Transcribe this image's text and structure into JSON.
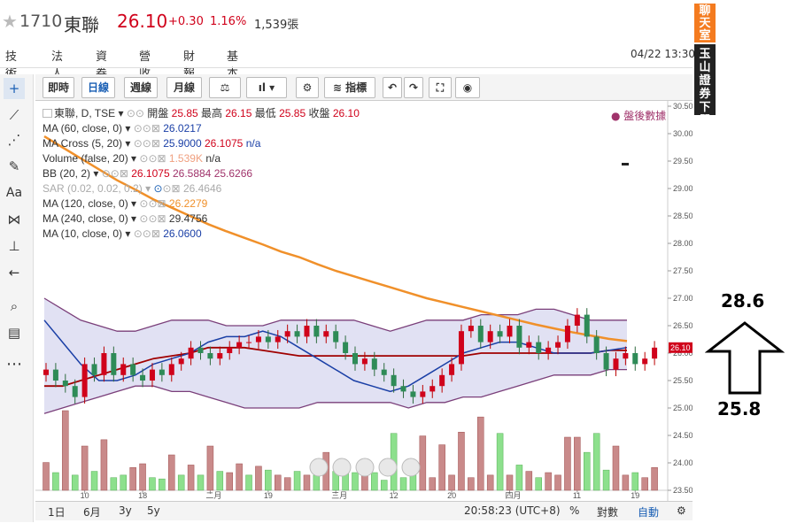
{
  "header": {
    "code": "1710",
    "name": "東聯",
    "price": "26.10",
    "change": "+0.30",
    "percent": "1.16%",
    "volume": "1,539張",
    "datetime": "04/22 13:30"
  },
  "tabs": [
    "技術",
    "法人",
    "資券",
    "營收",
    "財報",
    "基本"
  ],
  "toolbar": {
    "period_buttons": [
      "即時",
      "日線",
      "週線",
      "月線"
    ],
    "indicator_label": "指標"
  },
  "legend": {
    "main_label": "東聯, D, TSE",
    "open_label": "開盤",
    "open": "25.85",
    "high_label": "最高",
    "high": "26.15",
    "low_label": "最低",
    "low": "25.85",
    "close_label": "收盤",
    "close": "26.10",
    "ma60_label": "MA (60, close, 0)",
    "ma60": "26.0217",
    "macross_label": "MA Cross (5, 20)",
    "macross_1": "25.9000",
    "macross_2": "26.1075",
    "macross_3": "n/a",
    "volume_label": "Volume (false, 20)",
    "volume_1": "1.539K",
    "volume_2": "n/a",
    "bb_label": "BB (20, 2)",
    "bb_1": "26.1075",
    "bb_2": "26.5884",
    "bb_3": "25.6266",
    "sar_label": "SAR (0.02, 0.02, 0.2)",
    "sar": "26.4646",
    "ma120_label": "MA (120, close, 0)",
    "ma120": "26.2279",
    "ma240_label": "MA (240, close, 0)",
    "ma240": "29.4756",
    "ma10_label": "MA (10, close, 0)",
    "ma10": "26.0600",
    "after_hours": "盤後數據"
  },
  "bottom": {
    "ranges": [
      "1日",
      "6月",
      "3y",
      "5y"
    ],
    "time": "20:58:23 (UTC+8)",
    "pct": "%",
    "log": "對數",
    "auto": "自動"
  },
  "side": {
    "chat": "聊天室",
    "broker": "玉山證券下單"
  },
  "annotations": {
    "top_value": "28.6",
    "bottom_value": "25.8"
  },
  "colors": {
    "up": "#d0021b",
    "down": "#2e8b57",
    "accent": "#1a5fb4",
    "ma120": "#f0902a"
  },
  "chart_data": {
    "type": "candlestick",
    "symbol": "東聯, D, TSE",
    "ylim": [
      23.5,
      30.5
    ],
    "yticks": [
      23.5,
      24.0,
      24.5,
      25.0,
      25.5,
      26.0,
      26.5,
      27.0,
      27.5,
      28.0,
      28.5,
      29.0,
      29.5,
      30.0,
      30.5
    ],
    "xtick_labels": [
      "10",
      "18",
      "二月",
      "19",
      "三月",
      "12",
      "20",
      "四月",
      "11",
      "19"
    ],
    "last_price_tag": "26.10",
    "closes": [
      25.7,
      25.5,
      25.4,
      25.2,
      25.8,
      25.6,
      26.0,
      25.6,
      25.8,
      25.6,
      25.5,
      25.7,
      25.6,
      25.8,
      25.9,
      26.1,
      26.0,
      25.9,
      26.0,
      26.1,
      26.2,
      26.2,
      26.3,
      26.2,
      26.3,
      26.4,
      26.3,
      26.5,
      26.3,
      26.4,
      26.2,
      26.0,
      25.8,
      25.9,
      25.7,
      25.6,
      25.4,
      25.3,
      25.2,
      25.3,
      25.4,
      25.6,
      25.8,
      26.4,
      26.5,
      26.2,
      26.4,
      26.3,
      26.5,
      26.1,
      26.2,
      26.0,
      26.1,
      26.2,
      26.5,
      26.7,
      26.3,
      26.0,
      25.7,
      25.9,
      26.0,
      25.8,
      25.9,
      26.1
    ],
    "volumes": [
      0.22,
      0.14,
      0.63,
      0.12,
      0.35,
      0.15,
      0.4,
      0.1,
      0.12,
      0.18,
      0.21,
      0.1,
      0.09,
      0.28,
      0.12,
      0.2,
      0.12,
      0.35,
      0.15,
      0.14,
      0.21,
      0.12,
      0.19,
      0.16,
      0.12,
      0.1,
      0.15,
      0.12,
      0.12,
      0.3,
      0.15,
      0.14,
      0.14,
      0.12,
      0.14,
      0.08,
      0.45,
      0.1,
      0.12,
      0.43,
      0.1,
      0.36,
      0.12,
      0.46,
      0.1,
      0.58,
      0.12,
      0.45,
      0.12,
      0.2,
      0.15,
      0.1,
      0.14,
      0.12,
      0.42,
      0.42,
      0.3,
      0.45,
      0.16,
      0.35,
      0.12,
      0.14,
      0.1,
      0.18
    ],
    "volume_up": [
      true,
      false,
      true,
      false,
      true,
      false,
      true,
      false,
      false,
      true,
      true,
      false,
      false,
      true,
      false,
      true,
      false,
      true,
      false,
      true,
      true,
      false,
      true,
      false,
      true,
      true,
      false,
      true,
      false,
      true,
      false,
      false,
      false,
      true,
      false,
      false,
      false,
      false,
      false,
      true,
      true,
      true,
      true,
      true,
      true,
      true,
      true,
      false,
      true,
      false,
      true,
      false,
      true,
      true,
      true,
      true,
      false,
      false,
      false,
      true,
      true,
      false,
      true,
      true
    ],
    "ma120": [
      29.95,
      29.75,
      29.55,
      29.35,
      29.15,
      28.98,
      28.8,
      28.65,
      28.5,
      28.35,
      28.22,
      28.1,
      27.98,
      27.85,
      27.75,
      27.62,
      27.5,
      27.4,
      27.3,
      27.2,
      27.1,
      27.0,
      26.92,
      26.84,
      26.76,
      26.68,
      26.6,
      26.52,
      26.45,
      26.38,
      26.32,
      26.26,
      26.22
    ],
    "bb_upper": [
      27.0,
      26.8,
      26.6,
      26.5,
      26.4,
      26.4,
      26.5,
      26.6,
      26.6,
      26.6,
      26.5,
      26.5,
      26.5,
      26.6,
      26.6,
      26.6,
      26.6,
      26.6,
      26.5,
      26.4,
      26.5,
      26.6,
      26.6,
      26.6,
      26.7,
      26.7,
      26.7,
      26.8,
      26.8,
      26.7,
      26.6,
      26.6,
      26.6
    ],
    "bb_lower": [
      24.9,
      25.0,
      25.1,
      25.2,
      25.3,
      25.4,
      25.4,
      25.3,
      25.3,
      25.2,
      25.1,
      25.0,
      25.0,
      25.0,
      25.0,
      25.1,
      25.1,
      25.1,
      25.1,
      25.1,
      25.0,
      25.1,
      25.1,
      25.2,
      25.2,
      25.3,
      25.4,
      25.5,
      25.6,
      25.6,
      25.6,
      25.7,
      25.7
    ],
    "ma60": [
      25.4,
      25.4,
      25.5,
      25.6,
      25.7,
      25.8,
      25.9,
      25.95,
      26.0,
      26.1,
      26.1,
      26.1,
      26.05,
      26.0,
      25.95,
      25.95,
      25.95,
      25.95,
      25.95,
      25.95,
      25.95,
      25.95,
      25.95,
      25.95,
      26.0,
      26.0,
      26.0,
      26.0,
      26.0,
      26.0,
      26.0,
      26.05,
      26.05
    ],
    "ma10": [
      26.6,
      26.2,
      25.8,
      25.5,
      25.5,
      25.6,
      25.8,
      25.9,
      26.0,
      26.2,
      26.3,
      26.3,
      26.4,
      26.3,
      26.1,
      25.9,
      25.7,
      25.5,
      25.4,
      25.3,
      25.4,
      25.6,
      25.8,
      26.0,
      26.1,
      26.2,
      26.2,
      26.1,
      26.0,
      26.0,
      26.0,
      26.05,
      26.1
    ]
  }
}
